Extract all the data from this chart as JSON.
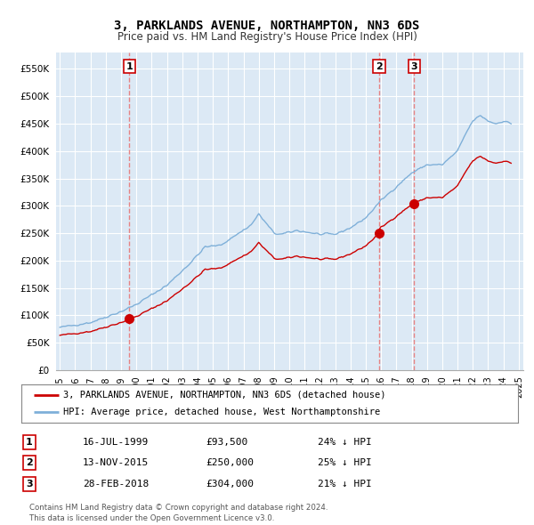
{
  "title": "3, PARKLANDS AVENUE, NORTHAMPTON, NN3 6DS",
  "subtitle": "Price paid vs. HM Land Registry's House Price Index (HPI)",
  "background_color": "#ffffff",
  "plot_bg_color": "#dce9f5",
  "grid_color": "#ffffff",
  "ylim": [
    0,
    580000
  ],
  "yticks": [
    0,
    50000,
    100000,
    150000,
    200000,
    250000,
    300000,
    350000,
    400000,
    450000,
    500000,
    550000
  ],
  "ytick_labels": [
    "£0",
    "£50K",
    "£100K",
    "£150K",
    "£200K",
    "£250K",
    "£300K",
    "£350K",
    "£400K",
    "£450K",
    "£500K",
    "£550K"
  ],
  "sale_points": [
    {
      "label": "1",
      "date_x": 1999.54,
      "price": 93500
    },
    {
      "label": "2",
      "date_x": 2015.87,
      "price": 250000
    },
    {
      "label": "3",
      "date_x": 2018.16,
      "price": 304000
    }
  ],
  "sale_line_color": "#cc0000",
  "hpi_line_color": "#7fb0d9",
  "sale_marker_color": "#cc0000",
  "vline_color": "#e87878",
  "legend_sale_label": "3, PARKLANDS AVENUE, NORTHAMPTON, NN3 6DS (detached house)",
  "legend_hpi_label": "HPI: Average price, detached house, West Northamptonshire",
  "table_rows": [
    [
      "1",
      "16-JUL-1999",
      "£93,500",
      "24% ↓ HPI"
    ],
    [
      "2",
      "13-NOV-2015",
      "£250,000",
      "25% ↓ HPI"
    ],
    [
      "3",
      "28-FEB-2018",
      "£304,000",
      "21% ↓ HPI"
    ]
  ],
  "footer": "Contains HM Land Registry data © Crown copyright and database right 2024.\nThis data is licensed under the Open Government Licence v3.0.",
  "xlim": [
    1994.75,
    2025.3
  ],
  "xtick_years": [
    1995,
    1996,
    1997,
    1998,
    1999,
    2000,
    2001,
    2002,
    2003,
    2004,
    2005,
    2006,
    2007,
    2008,
    2009,
    2010,
    2011,
    2012,
    2013,
    2014,
    2015,
    2016,
    2017,
    2018,
    2019,
    2020,
    2021,
    2022,
    2023,
    2024,
    2025
  ]
}
